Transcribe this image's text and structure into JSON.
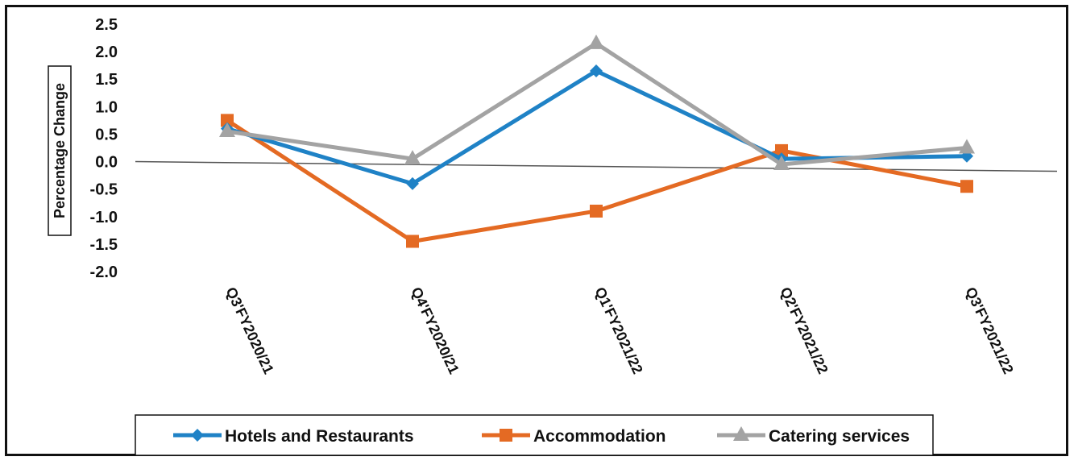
{
  "chart_data": {
    "type": "line",
    "categories": [
      "Q3'FY2020/21",
      "Q4'FY2020/21",
      "Q1'FY2021/22",
      "Q2'FY2021/22",
      "Q3'FY2021/22"
    ],
    "series": [
      {
        "name": "Hotels and Restaurants",
        "color": "#1f82c6",
        "marker": "diamond",
        "values": [
          0.6,
          -0.4,
          1.65,
          0.05,
          0.1
        ]
      },
      {
        "name": "Accommodation",
        "color": "#e46a23",
        "marker": "square",
        "values": [
          0.75,
          -1.45,
          -0.9,
          0.2,
          -0.45
        ]
      },
      {
        "name": "Catering services",
        "color": "#a3a3a3",
        "marker": "triangle",
        "values": [
          0.55,
          0.05,
          2.15,
          -0.05,
          0.25
        ]
      }
    ],
    "title": "",
    "xlabel": "",
    "ylabel": "Percentage Change",
    "yticks": [
      "2.5",
      "2.0",
      "1.5",
      "1.0",
      "0.5",
      "0.0",
      "-0.5",
      "-1.0",
      "-1.5",
      "-2.0"
    ],
    "ylim": [
      -2.0,
      2.5
    ],
    "grid": false,
    "legend_position": "bottom"
  }
}
